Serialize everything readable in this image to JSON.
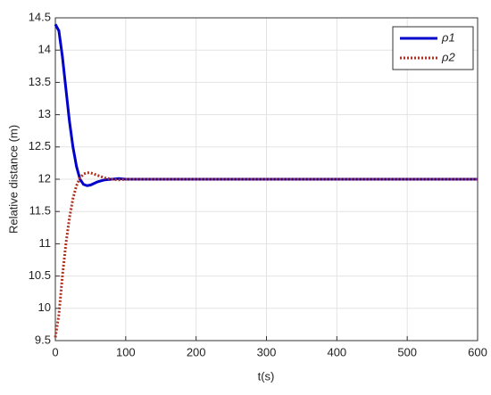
{
  "chart_data": {
    "type": "line",
    "x_label": "t(s)",
    "y_label": "Relative distance (m)",
    "x": [
      0,
      5,
      10,
      15,
      20,
      25,
      30,
      35,
      40,
      45,
      50,
      60,
      70,
      80,
      90,
      100,
      150,
      200,
      250,
      300,
      350,
      400,
      450,
      500,
      550,
      600
    ],
    "series": [
      {
        "name": "ρ1",
        "color": "#0000cc",
        "style": "solid",
        "values": [
          14.4,
          14.3,
          13.9,
          13.4,
          12.9,
          12.5,
          12.2,
          12.0,
          11.92,
          11.9,
          11.91,
          11.96,
          11.99,
          12.0,
          12.01,
          12.0,
          12,
          12,
          12,
          12,
          12,
          12,
          12,
          12,
          12,
          12
        ]
      },
      {
        "name": "ρ2",
        "color": "#b03020",
        "style": "dotted",
        "values": [
          9.55,
          9.9,
          10.5,
          11.0,
          11.4,
          11.7,
          11.9,
          12.02,
          12.08,
          12.1,
          12.1,
          12.06,
          12.02,
          12.0,
          11.99,
          12.0,
          12,
          12,
          12,
          12,
          12,
          12,
          12,
          12,
          12,
          12
        ]
      }
    ],
    "xlim": [
      0,
      600
    ],
    "xticks": [
      0,
      100,
      200,
      300,
      400,
      500,
      600
    ],
    "ylim": [
      9.5,
      14.5
    ],
    "yticks": [
      9.5,
      10,
      10.5,
      11,
      11.5,
      12,
      12.5,
      13,
      13.5,
      14,
      14.5
    ],
    "grid": true,
    "legend": "top-right"
  }
}
